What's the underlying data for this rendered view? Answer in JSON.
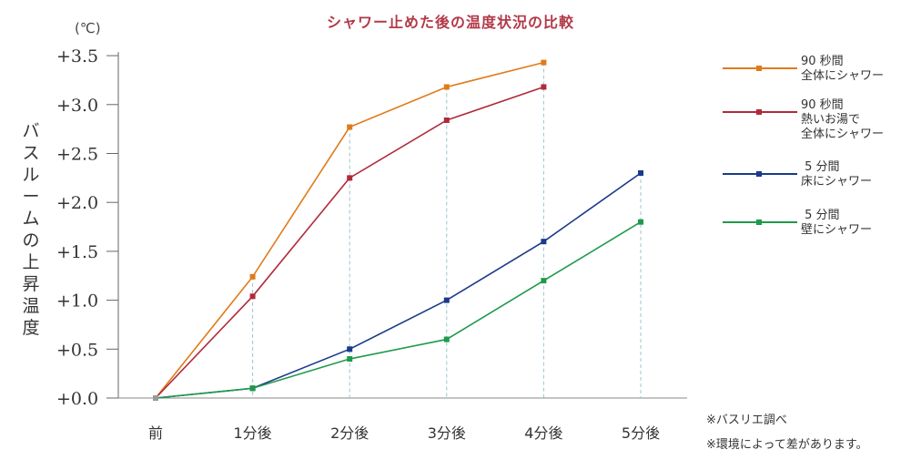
{
  "chart_data": {
    "type": "line",
    "title": "シャワー止めた後の温度状況の比較",
    "unit_label": "(℃)",
    "ylabel": "バスルームの上昇温度",
    "xlabel": "",
    "categories": [
      "前",
      "1分後",
      "2分後",
      "3分後",
      "4分後",
      "5分後"
    ],
    "ylim": [
      0,
      3.5
    ],
    "yticks": [
      0,
      0.5,
      1.0,
      1.5,
      2.0,
      2.5,
      3.0,
      3.5
    ],
    "ytick_labels": [
      "+0.0",
      "+0.5",
      "+1.0",
      "+1.5",
      "+2.0",
      "+2.5",
      "+3.0",
      "+3.5"
    ],
    "grid": "vertical dashed drop lines",
    "legend_position": "right",
    "series": [
      {
        "name": "90 秒間\n全体にシャワー",
        "color": "#e07b1a",
        "values": [
          0,
          1.24,
          2.77,
          3.18,
          3.43,
          null
        ]
      },
      {
        "name": "90 秒間\n熱いお湯で\n全体にシャワー",
        "color": "#b02a3a",
        "values": [
          0,
          1.04,
          2.25,
          2.84,
          3.18,
          null
        ]
      },
      {
        "name": " 5 分間\n床にシャワー",
        "color": "#1a3a8a",
        "values": [
          0,
          0.1,
          0.5,
          1.0,
          1.6,
          2.3
        ]
      },
      {
        "name": " 5 分間\n壁にシャワー",
        "color": "#1f9a4a",
        "values": [
          0,
          0.1,
          0.4,
          0.6,
          1.2,
          1.8
        ]
      }
    ],
    "notes": [
      "※バスリエ調べ",
      "※環境によって差があります。"
    ]
  }
}
